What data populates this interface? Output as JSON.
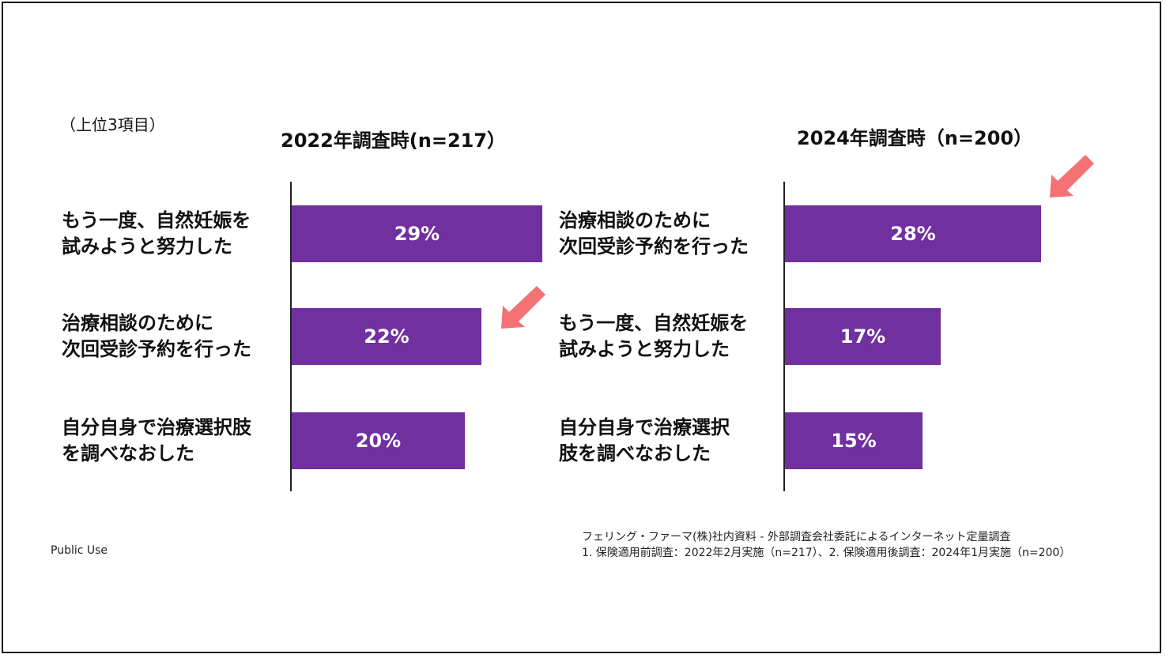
{
  "subtitle_note": "（上位3項目）",
  "colors": {
    "bar": "#7030A0",
    "arrow": "#F47174",
    "bar_text": "#FFFFFF"
  },
  "chart_data": [
    {
      "type": "bar",
      "orientation": "horizontal",
      "title": "2022年調査時(n=217）",
      "categories": [
        "もう一度、自然妊娠を\n試みようと努力した",
        "治療相談のために\n次回受診予約を行った",
        "自分自身で治療選択肢\nを調べなおした"
      ],
      "values": [
        29,
        22,
        20
      ],
      "data_labels": [
        "29%",
        "22%",
        "20%"
      ],
      "unit": "%",
      "xlim": [
        0,
        29
      ],
      "highlight_index": 1
    },
    {
      "type": "bar",
      "orientation": "horizontal",
      "title": "2024年調査時（n=200）",
      "categories": [
        "治療相談のために\n次回受診予約を行った",
        "もう一度、自然妊娠を\n試みようと努力した",
        "自分自身で治療選択\n肢を調べなおした"
      ],
      "values": [
        28,
        17,
        15
      ],
      "data_labels": [
        "28%",
        "17%",
        "15%"
      ],
      "unit": "%",
      "xlim": [
        0,
        29
      ],
      "highlight_index": 0
    }
  ],
  "footer": {
    "source_line": "フェリング・ファーマ(株)社内資料 - 外部調査会社委託によるインターネット定量調査",
    "detail_line": "1. 保険適用前調査：2022年2月実施（n=217）、2. 保険適用後調査：2024年1月実施（n=200）"
  },
  "classification": "Public Use"
}
